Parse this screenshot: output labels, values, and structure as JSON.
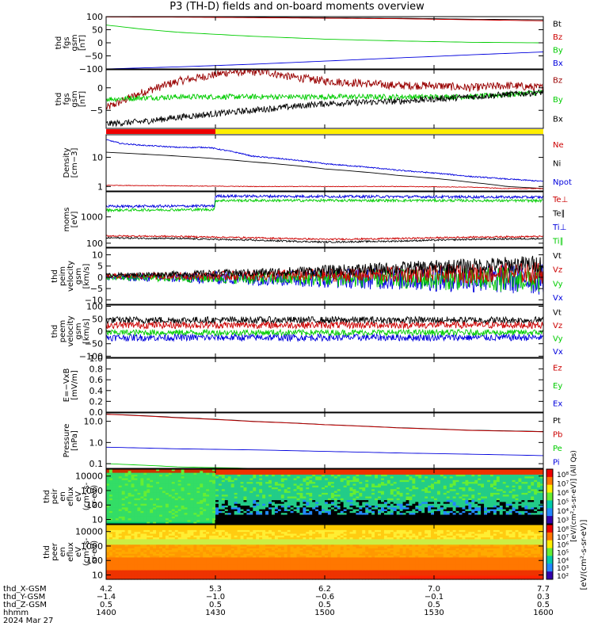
{
  "title": "P3 (TH-D) fields and on-board moments overview",
  "date_label": "2024 Mar 27",
  "colors": {
    "black": "#000000",
    "red": "#cc0000",
    "green": "#00cc00",
    "blue": "#0000dd",
    "darkred": "#990000",
    "yellow": "#ffee00"
  },
  "chart_data": [
    {
      "type": "line",
      "ylabel": [
        "thd",
        "fgs",
        "gsm",
        "[nT]"
      ],
      "ylim": [
        -100,
        100
      ],
      "yticks": [
        "100",
        "50",
        "0",
        "−50",
        "−100"
      ],
      "ytick_values": [
        100,
        50,
        0,
        -50,
        -100
      ],
      "legend": [
        "Bt",
        "Bz",
        "By",
        "Bx"
      ],
      "legend_colors": [
        "#000000",
        "#cc0000",
        "#00cc00",
        "#0000dd"
      ],
      "series": [
        {
          "key": "Bt",
          "color": "#000000",
          "x": [
            0,
            10,
            20,
            30,
            40,
            50,
            60
          ],
          "y": [
            100,
            99,
            97,
            96,
            94,
            90,
            88
          ],
          "noise": 0
        },
        {
          "key": "Bz",
          "color": "#cc0000",
          "x": [
            0,
            10,
            20,
            30,
            40,
            50,
            60
          ],
          "y": [
            99,
            98,
            96,
            94,
            92,
            88,
            84
          ],
          "noise": 0
        },
        {
          "key": "By",
          "color": "#00cc00",
          "x": [
            0,
            5,
            10,
            20,
            30,
            40,
            50,
            60
          ],
          "y": [
            68,
            52,
            40,
            25,
            14,
            7,
            2,
            0
          ],
          "noise": 0
        },
        {
          "key": "Bx",
          "color": "#0000dd",
          "x": [
            0,
            10,
            20,
            30,
            40,
            50,
            60
          ],
          "y": [
            -100,
            -92,
            -82,
            -70,
            -58,
            -46,
            -35
          ],
          "noise": 0
        }
      ]
    },
    {
      "type": "line",
      "ylabel": [
        "thd",
        "fgs",
        "gsm",
        "[nT]"
      ],
      "ylim": [
        -9,
        4
      ],
      "yticks": [
        "0",
        "−5"
      ],
      "ytick_values": [
        0,
        -5
      ],
      "legend": [
        "Bz",
        "By",
        "Bx"
      ],
      "legend_colors": [
        "#990000",
        "#00cc00",
        "#000000"
      ],
      "series": [
        {
          "key": "Bz",
          "color": "#990000",
          "x": [
            0,
            5,
            10,
            17,
            22,
            25,
            30,
            35,
            40,
            45,
            50,
            55,
            60
          ],
          "y": [
            -4.5,
            -1,
            1.5,
            3.5,
            3.5,
            2.5,
            1.5,
            1,
            0.5,
            0.5,
            0,
            0.5,
            0
          ],
          "noise": 0.9
        },
        {
          "key": "By",
          "color": "#00cc00",
          "x": [
            0,
            10,
            20,
            30,
            40,
            50,
            60
          ],
          "y": [
            -2.5,
            -2,
            -2,
            -2,
            -2,
            -2,
            -1
          ],
          "noise": 0.6
        },
        {
          "key": "Bx",
          "color": "#000000",
          "x": [
            0,
            5,
            10,
            20,
            30,
            40,
            50,
            60
          ],
          "y": [
            -8,
            -7.5,
            -6.5,
            -5,
            -3.5,
            -3,
            -2,
            -1
          ],
          "noise": 0.7
        }
      ]
    },
    {
      "type": "bar",
      "segments": [
        {
          "from": 0,
          "to": 15,
          "color": "#ee0000"
        },
        {
          "from": 15,
          "to": 60,
          "color": "#ffee00"
        }
      ]
    },
    {
      "type": "line",
      "log": true,
      "ylabel": [
        "Density",
        "[cm−3]"
      ],
      "ylim": [
        0.7,
        60
      ],
      "yticks": [
        "10",
        "1"
      ],
      "ytick_values": [
        10,
        1
      ],
      "legend": [
        "Ne",
        "Ni",
        "Npot"
      ],
      "legend_colors": [
        "#cc0000",
        "#000000",
        "#0000dd"
      ],
      "series": [
        {
          "key": "Npot",
          "color": "#0000dd",
          "x": [
            0,
            2,
            5,
            10,
            14,
            16,
            20,
            30,
            40,
            50,
            55,
            60
          ],
          "y": [
            40,
            30,
            26,
            22,
            22,
            18,
            11,
            6,
            3.6,
            2.2,
            1.8,
            1.5
          ],
          "noise": 0.02
        },
        {
          "key": "Ni",
          "color": "#000000",
          "x": [
            0,
            5,
            10,
            20,
            30,
            40,
            50,
            55,
            60
          ],
          "y": [
            15,
            13,
            11,
            7,
            4,
            2.4,
            1.4,
            1.0,
            0.85
          ],
          "noise": 0
        },
        {
          "key": "Ne",
          "color": "#cc0000",
          "x": [
            0,
            10,
            20,
            30,
            40,
            50,
            55,
            60
          ],
          "y": [
            1.1,
            1.05,
            1.0,
            1.0,
            1.0,
            0.95,
            0.85,
            0.85
          ],
          "noise": 0.01
        }
      ]
    },
    {
      "type": "line",
      "log": true,
      "ylabel": [
        "moms",
        "[eV]"
      ],
      "ylim": [
        70,
        9000
      ],
      "yticks": [
        "1000",
        "100"
      ],
      "ytick_values": [
        1000,
        100
      ],
      "legend": [
        "Te⊥",
        "Te∥",
        "Ti⊥",
        "Ti∥"
      ],
      "legend_colors": [
        "#cc0000",
        "#000000",
        "#0000dd",
        "#00cc00"
      ],
      "series": [
        {
          "key": "Ti⊥",
          "color": "#0000dd",
          "x": [
            0,
            14.9,
            15,
            30,
            45,
            60
          ],
          "y": [
            2500,
            2600,
            6200,
            6000,
            5800,
            5600
          ],
          "noise": 0.05
        },
        {
          "key": "Ti∥",
          "color": "#00cc00",
          "x": [
            0,
            14.9,
            15,
            30,
            45,
            60
          ],
          "y": [
            1800,
            1900,
            4200,
            4200,
            4200,
            4100
          ],
          "noise": 0.05
        },
        {
          "key": "Te⊥",
          "color": "#cc0000",
          "x": [
            0,
            10,
            20,
            30,
            40,
            50,
            60
          ],
          "y": [
            190,
            180,
            160,
            140,
            150,
            170,
            180
          ],
          "noise": 0.03
        },
        {
          "key": "Te∥",
          "color": "#000000",
          "x": [
            0,
            10,
            20,
            30,
            40,
            50,
            60
          ],
          "y": [
            160,
            150,
            130,
            110,
            120,
            140,
            150
          ],
          "noise": 0.03
        }
      ]
    },
    {
      "type": "line",
      "ylabel": [
        "thd",
        "peim",
        "velocity",
        "gsm",
        "[km/s]"
      ],
      "ylim": [
        -12,
        13
      ],
      "yticks": [
        "10",
        "5",
        "0",
        "−5",
        "−10"
      ],
      "ytick_values": [
        10,
        5,
        0,
        -5,
        -10
      ],
      "legend": [
        "Vt",
        "Vz",
        "Vy",
        "Vx"
      ],
      "legend_colors": [
        "#000000",
        "#cc0000",
        "#00cc00",
        "#0000dd"
      ],
      "series": [
        {
          "key": "Vx",
          "color": "#0000dd",
          "x": [
            0,
            30,
            60
          ],
          "y": [
            0,
            -0.5,
            -1
          ],
          "noise": 3.5,
          "noise_grow": true
        },
        {
          "key": "Vy",
          "color": "#00cc00",
          "x": [
            0,
            30,
            60
          ],
          "y": [
            0,
            -0.5,
            -1
          ],
          "noise": 3.0,
          "noise_grow": true
        },
        {
          "key": "Vz",
          "color": "#cc0000",
          "x": [
            0,
            30,
            60
          ],
          "y": [
            0.5,
            1,
            2
          ],
          "noise": 2.5,
          "noise_grow": true
        },
        {
          "key": "Vt",
          "color": "#000000",
          "x": [
            0,
            20,
            40,
            60
          ],
          "y": [
            1,
            2,
            4,
            6
          ],
          "noise": 2.0,
          "noise_grow": true
        }
      ]
    },
    {
      "type": "line",
      "ylabel": [
        "thd",
        "peem",
        "velocity",
        "gsm",
        "[km/s]"
      ],
      "ylim": [
        -105,
        105
      ],
      "yticks": [
        "100",
        "50",
        "0",
        "−50",
        "−100"
      ],
      "ytick_values": [
        100,
        50,
        0,
        -50,
        -100
      ],
      "legend": [
        "Vt",
        "Vz",
        "Vy",
        "Vx"
      ],
      "legend_colors": [
        "#000000",
        "#cc0000",
        "#00cc00",
        "#0000dd"
      ],
      "series": [
        {
          "key": "Vx",
          "color": "#0000dd",
          "x": [
            0,
            60
          ],
          "y": [
            -25,
            -25
          ],
          "noise": 14
        },
        {
          "key": "Vy",
          "color": "#00cc00",
          "x": [
            0,
            60
          ],
          "y": [
            -5,
            -5
          ],
          "noise": 12
        },
        {
          "key": "Vt",
          "color": "#000000",
          "x": [
            0,
            60
          ],
          "y": [
            45,
            45
          ],
          "noise": 14
        },
        {
          "key": "Vz",
          "color": "#cc0000",
          "x": [
            0,
            60
          ],
          "y": [
            25,
            25
          ],
          "noise": 14
        }
      ]
    },
    {
      "type": "line",
      "ylabel": [
        "E=−VxB",
        "[mV/m]"
      ],
      "ylim": [
        0,
        1
      ],
      "yticks": [
        "1.0",
        "0.8",
        "0.6",
        "0.4",
        "0.2",
        "0.0"
      ],
      "ytick_values": [
        1,
        0.8,
        0.6,
        0.4,
        0.2,
        0
      ],
      "legend": [
        "Ez",
        "Ey",
        "Ex"
      ],
      "legend_colors": [
        "#cc0000",
        "#00cc00",
        "#0000dd"
      ],
      "series": []
    },
    {
      "type": "line",
      "log": true,
      "ylabel": [
        "Pressure",
        "[nPa]"
      ],
      "ylim": [
        0.06,
        25
      ],
      "yticks": [
        "10.0",
        "1.0",
        "0.1"
      ],
      "ytick_values": [
        10,
        1,
        0.1
      ],
      "legend": [
        "Pt",
        "Pb",
        "Pe",
        "Pi"
      ],
      "legend_colors": [
        "#000000",
        "#cc0000",
        "#00cc00",
        "#0000dd"
      ],
      "series": [
        {
          "key": "Pt",
          "color": "#000000",
          "x": [
            0,
            10,
            20,
            30,
            40,
            50,
            60
          ],
          "y": [
            22,
            15,
            10,
            7,
            5,
            3.8,
            3.3
          ],
          "noise": 0
        },
        {
          "key": "Pb",
          "color": "#cc0000",
          "x": [
            0,
            10,
            20,
            30,
            40,
            50,
            60
          ],
          "y": [
            21.5,
            14.5,
            9.8,
            6.9,
            4.9,
            3.7,
            3.2
          ],
          "noise": 0
        },
        {
          "key": "Pi",
          "color": "#0000dd",
          "x": [
            0,
            10,
            20,
            30,
            40,
            50,
            60
          ],
          "y": [
            0.6,
            0.5,
            0.45,
            0.38,
            0.32,
            0.28,
            0.24
          ],
          "noise": 0
        },
        {
          "key": "Pe",
          "color": "#00cc00",
          "x": [
            0,
            10,
            20,
            30,
            40,
            50,
            60
          ],
          "y": [
            0.1,
            0.07,
            0.06,
            0.055,
            0.05,
            0.05,
            0.05
          ],
          "noise": 0
        }
      ]
    },
    {
      "type": "heatmap",
      "ylabel": [
        "thd",
        "peir",
        "en",
        "eflux",
        "eV",
        "(cm²-s-",
        "sr-eV)"
      ],
      "log": true,
      "ylim": [
        5,
        30000
      ],
      "yticks": [
        "10000",
        "1000",
        "100",
        "10"
      ],
      "ytick_values": [
        10000,
        1000,
        100,
        10
      ],
      "cbar_ticks": [
        "10⁸",
        "10⁷",
        "10⁶",
        "10⁵",
        "10⁴",
        "10³"
      ],
      "cbar_values": [
        8,
        7,
        6,
        5,
        4,
        3
      ],
      "cbar_label": "[eV/(cm²-s-sr-eV)]  (All Qs)"
    },
    {
      "type": "heatmap",
      "ylabel": [
        "thd",
        "peer",
        "en",
        "eflux",
        "eV",
        "(cm²-s-",
        "sr-eV)"
      ],
      "log": true,
      "ylim": [
        5,
        30000
      ],
      "yticks": [
        "10000",
        "1000",
        "100",
        "10"
      ],
      "ytick_values": [
        10000,
        1000,
        100,
        10
      ],
      "cbar_ticks": [
        "10⁸",
        "10⁷",
        "10⁶",
        "10⁵",
        "10⁴",
        "10³",
        "10²"
      ],
      "cbar_values": [
        8,
        7,
        6,
        5,
        4,
        3,
        2
      ],
      "cbar_label": "[eV/(cm²-s-sr-eV)]"
    }
  ],
  "xaxis": {
    "tick_minutes": [
      0,
      15,
      30,
      45,
      60
    ],
    "rows": [
      {
        "label": "thd_X-GSM",
        "values": [
          "4.2",
          "5.3",
          "6.2",
          "7.0",
          "7.7"
        ]
      },
      {
        "label": "thd_Y-GSM",
        "values": [
          "−1.4",
          "−1.0",
          "−0.6",
          "−0.1",
          "0.3"
        ]
      },
      {
        "label": "thd_Z-GSM",
        "values": [
          "0.5",
          "0.5",
          "0.5",
          "0.5",
          "0.5"
        ]
      },
      {
        "label": "hhmm",
        "values": [
          "1400",
          "1430",
          "1500",
          "1530",
          "1600"
        ]
      }
    ]
  }
}
